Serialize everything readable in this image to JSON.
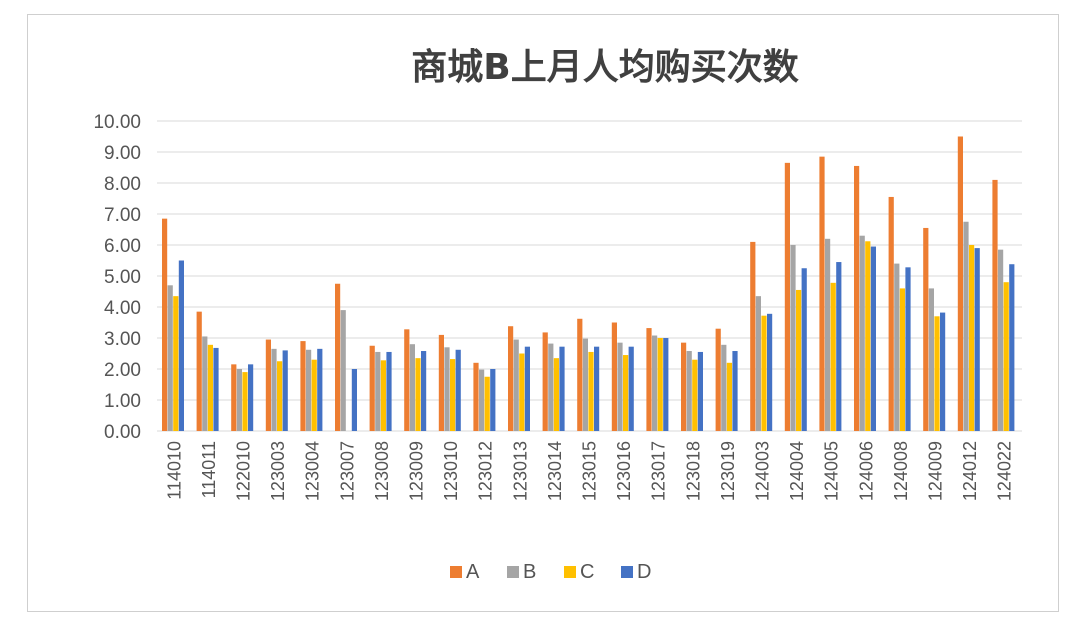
{
  "chart_data": {
    "type": "bar",
    "title": "商城B上月人均购买次数",
    "xlabel": "",
    "ylabel": "",
    "ylim": [
      0,
      10
    ],
    "yticks": [
      "0.00",
      "1.00",
      "2.00",
      "3.00",
      "4.00",
      "5.00",
      "6.00",
      "7.00",
      "8.00",
      "9.00",
      "10.00"
    ],
    "grid": true,
    "legend_position": "bottom",
    "categories": [
      "114010",
      "114011",
      "122010",
      "123003",
      "123004",
      "123007",
      "123008",
      "123009",
      "123010",
      "123012",
      "123013",
      "123014",
      "123015",
      "123016",
      "123017",
      "123018",
      "123019",
      "124003",
      "124004",
      "124005",
      "124006",
      "124008",
      "124009",
      "124012",
      "124022"
    ],
    "series": [
      {
        "name": "A",
        "color": "#ED7D31",
        "values": [
          6.85,
          3.85,
          2.15,
          2.95,
          2.9,
          4.75,
          2.75,
          3.28,
          3.1,
          2.2,
          3.38,
          3.18,
          3.62,
          3.5,
          3.32,
          2.85,
          3.3,
          6.1,
          8.65,
          8.85,
          8.55,
          7.55,
          6.55,
          9.5,
          8.1
        ]
      },
      {
        "name": "B",
        "color": "#A5A5A5",
        "values": [
          4.7,
          3.05,
          2.0,
          2.65,
          2.62,
          3.9,
          2.55,
          2.8,
          2.7,
          1.98,
          2.95,
          2.82,
          2.98,
          2.85,
          3.08,
          2.58,
          2.78,
          4.35,
          6.0,
          6.2,
          6.3,
          5.4,
          4.6,
          6.75,
          5.85
        ]
      },
      {
        "name": "C",
        "color": "#FFC000",
        "values": [
          4.35,
          2.78,
          1.9,
          2.25,
          2.3,
          0,
          2.28,
          2.35,
          2.32,
          1.75,
          2.5,
          2.35,
          2.55,
          2.45,
          3.0,
          2.3,
          2.2,
          3.72,
          4.55,
          4.78,
          6.12,
          4.6,
          3.7,
          6.0,
          4.8
        ]
      },
      {
        "name": "D",
        "color": "#4472C4",
        "values": [
          5.5,
          2.68,
          2.15,
          2.6,
          2.65,
          2.0,
          2.55,
          2.58,
          2.62,
          2.0,
          2.72,
          2.72,
          2.72,
          2.72,
          3.0,
          2.55,
          2.58,
          3.78,
          5.25,
          5.45,
          5.95,
          5.28,
          3.82,
          5.9,
          5.38
        ]
      }
    ]
  }
}
